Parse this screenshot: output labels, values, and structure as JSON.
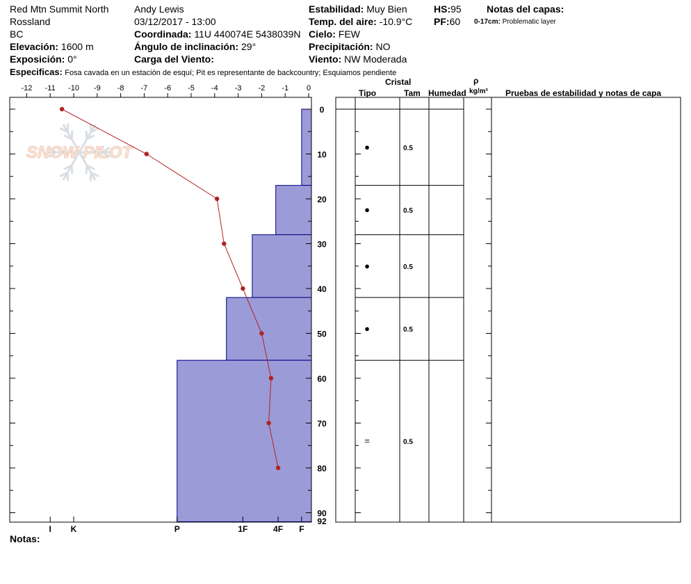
{
  "header": {
    "location": "Red Mtn Summit North",
    "area": "Rossland",
    "region": "BC",
    "observer": "Andy Lewis",
    "datetime": "03/12/2017 - 13:00",
    "elevation_label": "Elevación:",
    "elevation_value": "1600 m",
    "aspect_label": "Exposición:",
    "aspect_value": "0°",
    "coord_label": "Coordinada:",
    "coord_value": "11U 440074E 5438039N",
    "slope_label": "Ángulo de inclinación:",
    "slope_value": "29°",
    "wind_loading_label": "Carga del Viento:",
    "stability_label": "Estabilidad:",
    "stability_value": "Muy Bien",
    "air_temp_label": "Temp. del aire:",
    "air_temp_value": "-10.9°C",
    "sky_label": "Cielo:",
    "sky_value": "FEW",
    "precip_label": "Precipitación:",
    "precip_value": "NO",
    "wind_label": "Viento:",
    "wind_value": "NW Moderada",
    "hs_label": "HS:",
    "hs_value": "95",
    "pf_label": "PF:",
    "pf_value": "60",
    "layer_notes_label": "Notas del capas:",
    "layer_note_range": "0-17cm:",
    "layer_note_text": "Problematic layer",
    "specifics_label": "Especificas:",
    "specifics_text": "Fosa cavada en un estación de esquí; Pit es representante de backcountry; Esquiamos pendiente",
    "notes_label": "Notas:"
  },
  "columns": {
    "crystal": "Cristal",
    "type": "Tipo",
    "size": "Tam",
    "moisture": "Humedad",
    "rho": "ρ",
    "density_unit": "kg/m³",
    "tests": "Pruebas de estabilidad y notas de capa"
  },
  "watermark": "SNOW PILOT",
  "colors": {
    "hardness_fill": "#9b9bd7",
    "hardness_edge": "#00008b",
    "temp": "#b22222"
  },
  "chart_data": {
    "type": "bar",
    "temp_axis": {
      "ticks": [
        -12,
        -11,
        -10,
        -9,
        -8,
        -7,
        -6,
        -5,
        -4,
        -3,
        -2,
        -1,
        0
      ],
      "range": [
        -12.5,
        0
      ]
    },
    "depth_axis": {
      "ticks": [
        0,
        10,
        20,
        30,
        40,
        50,
        60,
        70,
        80,
        90
      ],
      "bottom_label": "92",
      "range": [
        -2.5,
        92
      ]
    },
    "hardness_axis": {
      "labels": [
        "I",
        "K",
        "P",
        "1F",
        "4F",
        "F"
      ]
    },
    "temperature_profile": [
      {
        "depth": 0,
        "temp": -10.5
      },
      {
        "depth": 10,
        "temp": -6.9
      },
      {
        "depth": 20,
        "temp": -3.9
      },
      {
        "depth": 30,
        "temp": -3.6
      },
      {
        "depth": 40,
        "temp": -2.8
      },
      {
        "depth": 50,
        "temp": -2.0
      },
      {
        "depth": 60,
        "temp": -1.6
      },
      {
        "depth": 70,
        "temp": -1.7
      },
      {
        "depth": 80,
        "temp": -1.3
      }
    ],
    "layers": [
      {
        "top": 0,
        "bottom": 17,
        "hardness_temp_equiv": -0.3,
        "grain": "●",
        "size": "0.5"
      },
      {
        "top": 17,
        "bottom": 28,
        "hardness_temp_equiv": -1.4,
        "grain": "●",
        "size": "0.5"
      },
      {
        "top": 28,
        "bottom": 42,
        "hardness_temp_equiv": -2.4,
        "grain": "●",
        "size": "0.5"
      },
      {
        "top": 42,
        "bottom": 56,
        "hardness_temp_equiv": -3.5,
        "grain": "●",
        "size": "0.5"
      },
      {
        "top": 56,
        "bottom": 92,
        "hardness_temp_equiv": -5.6,
        "grain": "=",
        "size": "0.5"
      }
    ]
  }
}
